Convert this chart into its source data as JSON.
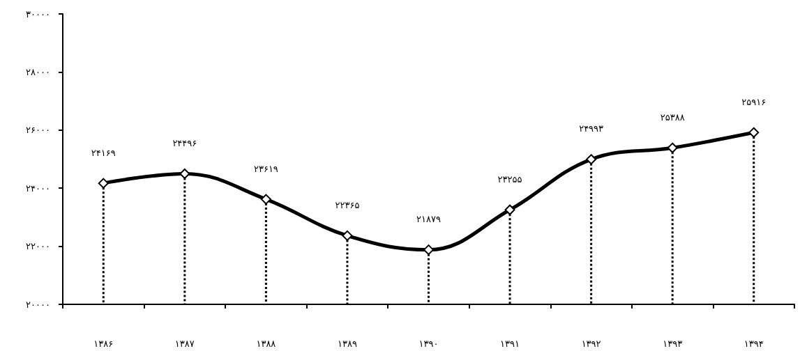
{
  "chart_data": {
    "type": "line",
    "categories": [
      "۱۳۸۶",
      "۱۳۸۷",
      "۱۳۸۸",
      "۱۳۸۹",
      "۱۳۹۰",
      "۱۳۹۱",
      "۱۳۹۲",
      "۱۳۹۳",
      "۱۳۹۴"
    ],
    "series": [
      {
        "color": "#000000",
        "line_style": "solid",
        "values": [
          24169,
          24496,
          23619,
          22365,
          21879,
          23255,
          24993,
          25388,
          25916
        ]
      },
      {
        "type": "lollipop",
        "color": "#000000",
        "line_style": "dotted",
        "marker": "diamond",
        "values": [
          24169,
          24496,
          23619,
          22365,
          21879,
          23255,
          24993,
          25388,
          25916
        ],
        "value_labels": [
          "۲۴۱۶۹",
          "۲۴۴۹۶",
          "۲۳۶۱۹",
          "۲۲۳۶۵",
          "۲۱۸۷۹",
          "۲۳۲۵۵",
          "۲۴۹۹۳",
          "۲۵۳۸۸",
          "۲۵۹۱۶"
        ]
      }
    ],
    "ylim": [
      20000,
      30000
    ],
    "yticks": [
      {
        "value": 20000,
        "label": "۲۰۰۰۰"
      },
      {
        "value": 22000,
        "label": "۲۲۰۰۰"
      },
      {
        "value": 24000,
        "label": "۲۴۰۰۰"
      },
      {
        "value": 26000,
        "label": "۲۶۰۰۰"
      },
      {
        "value": 28000,
        "label": "۲۸۰۰۰"
      },
      {
        "value": 30000,
        "label": "۳۰۰۰۰"
      }
    ],
    "grid": false
  }
}
